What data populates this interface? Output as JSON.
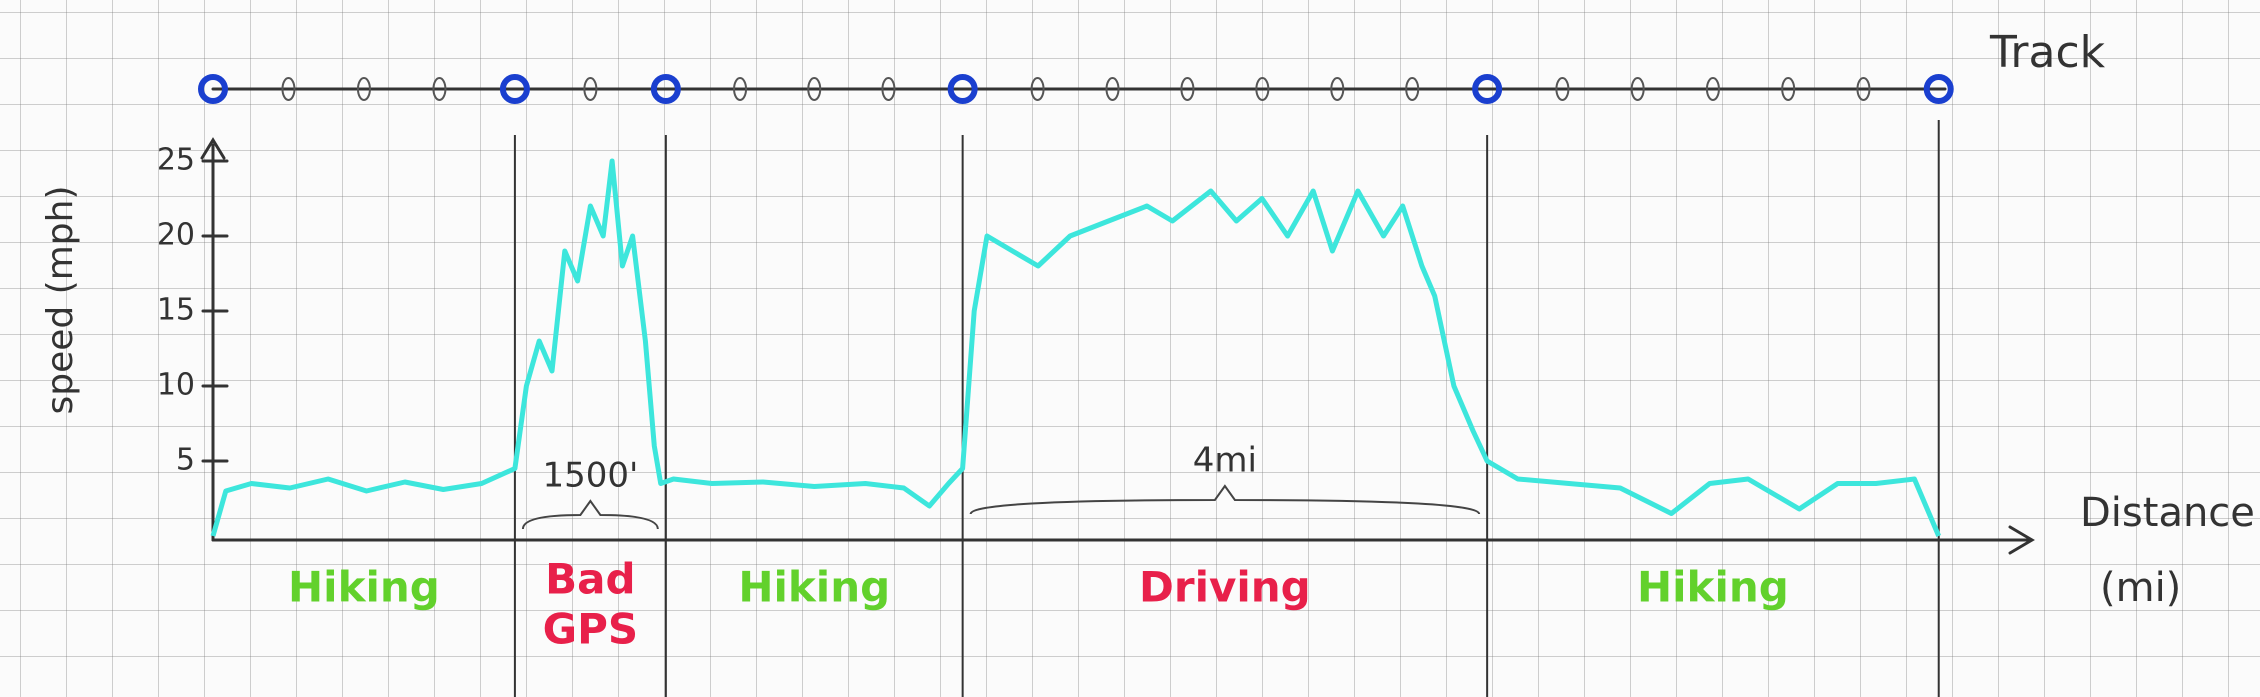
{
  "chart_data": {
    "type": "line",
    "track_label": "Track",
    "ylabel": "speed (mph)",
    "xlabel": [
      "Distance",
      "(mi)"
    ],
    "ylim": [
      0,
      26
    ],
    "yticks": [
      5,
      10,
      15,
      20,
      25
    ],
    "xlim": [
      0,
      13.5
    ],
    "series": [
      {
        "name": "speed",
        "color": "#3de6dc",
        "x": [
          0,
          0.1,
          0.3,
          0.6,
          0.9,
          1.2,
          1.5,
          1.8,
          2.1,
          2.36,
          2.45,
          2.55,
          2.65,
          2.75,
          2.85,
          2.95,
          3.05,
          3.12,
          3.2,
          3.28,
          3.38,
          3.45,
          3.5,
          3.6,
          3.9,
          4.3,
          4.7,
          5.1,
          5.4,
          5.6,
          5.75,
          5.86,
          5.95,
          6.05,
          6.25,
          6.45,
          6.7,
          7.0,
          7.3,
          7.5,
          7.8,
          8.0,
          8.2,
          8.4,
          8.6,
          8.75,
          8.95,
          9.15,
          9.3,
          9.45,
          9.55,
          9.7,
          9.85,
          9.96,
          10.2,
          10.6,
          11.0,
          11.4,
          11.7,
          12.0,
          12.4,
          12.7,
          13.0,
          13.3,
          13.49
        ],
        "values": [
          0,
          3,
          3.5,
          3.2,
          3.8,
          3,
          3.6,
          3.1,
          3.5,
          4.5,
          10,
          13,
          11,
          19,
          17,
          22,
          20,
          25,
          18,
          20,
          13,
          6,
          3.5,
          3.8,
          3.5,
          3.6,
          3.3,
          3.5,
          3.2,
          2,
          3.5,
          4.5,
          15,
          20,
          19,
          18,
          20,
          21,
          22,
          21,
          23,
          21,
          22.5,
          20,
          23,
          19,
          23,
          20,
          22,
          18,
          16,
          10,
          7,
          5,
          3.8,
          3.5,
          3.2,
          1.5,
          3.5,
          3.8,
          1.8,
          3.5,
          3.5,
          3.8,
          0
        ]
      }
    ],
    "segments": [
      {
        "label": [
          "Hiking"
        ],
        "start": 0,
        "end": 2.36,
        "color": "#62d12c"
      },
      {
        "label": [
          "Bad",
          "GPS"
        ],
        "start": 2.36,
        "end": 3.54,
        "color": "#e8204a"
      },
      {
        "label": [
          "Hiking"
        ],
        "start": 3.54,
        "end": 5.86,
        "color": "#62d12c"
      },
      {
        "label": [
          "Driving"
        ],
        "start": 5.86,
        "end": 9.96,
        "color": "#e8204a"
      },
      {
        "label": [
          "Hiking"
        ],
        "start": 9.96,
        "end": 13.49,
        "color": "#62d12c"
      }
    ],
    "annotations": [
      {
        "text": "1500'",
        "from": 2.36,
        "to": 3.54
      },
      {
        "text": "4mi",
        "from": 5.86,
        "to": 9.96
      }
    ]
  }
}
